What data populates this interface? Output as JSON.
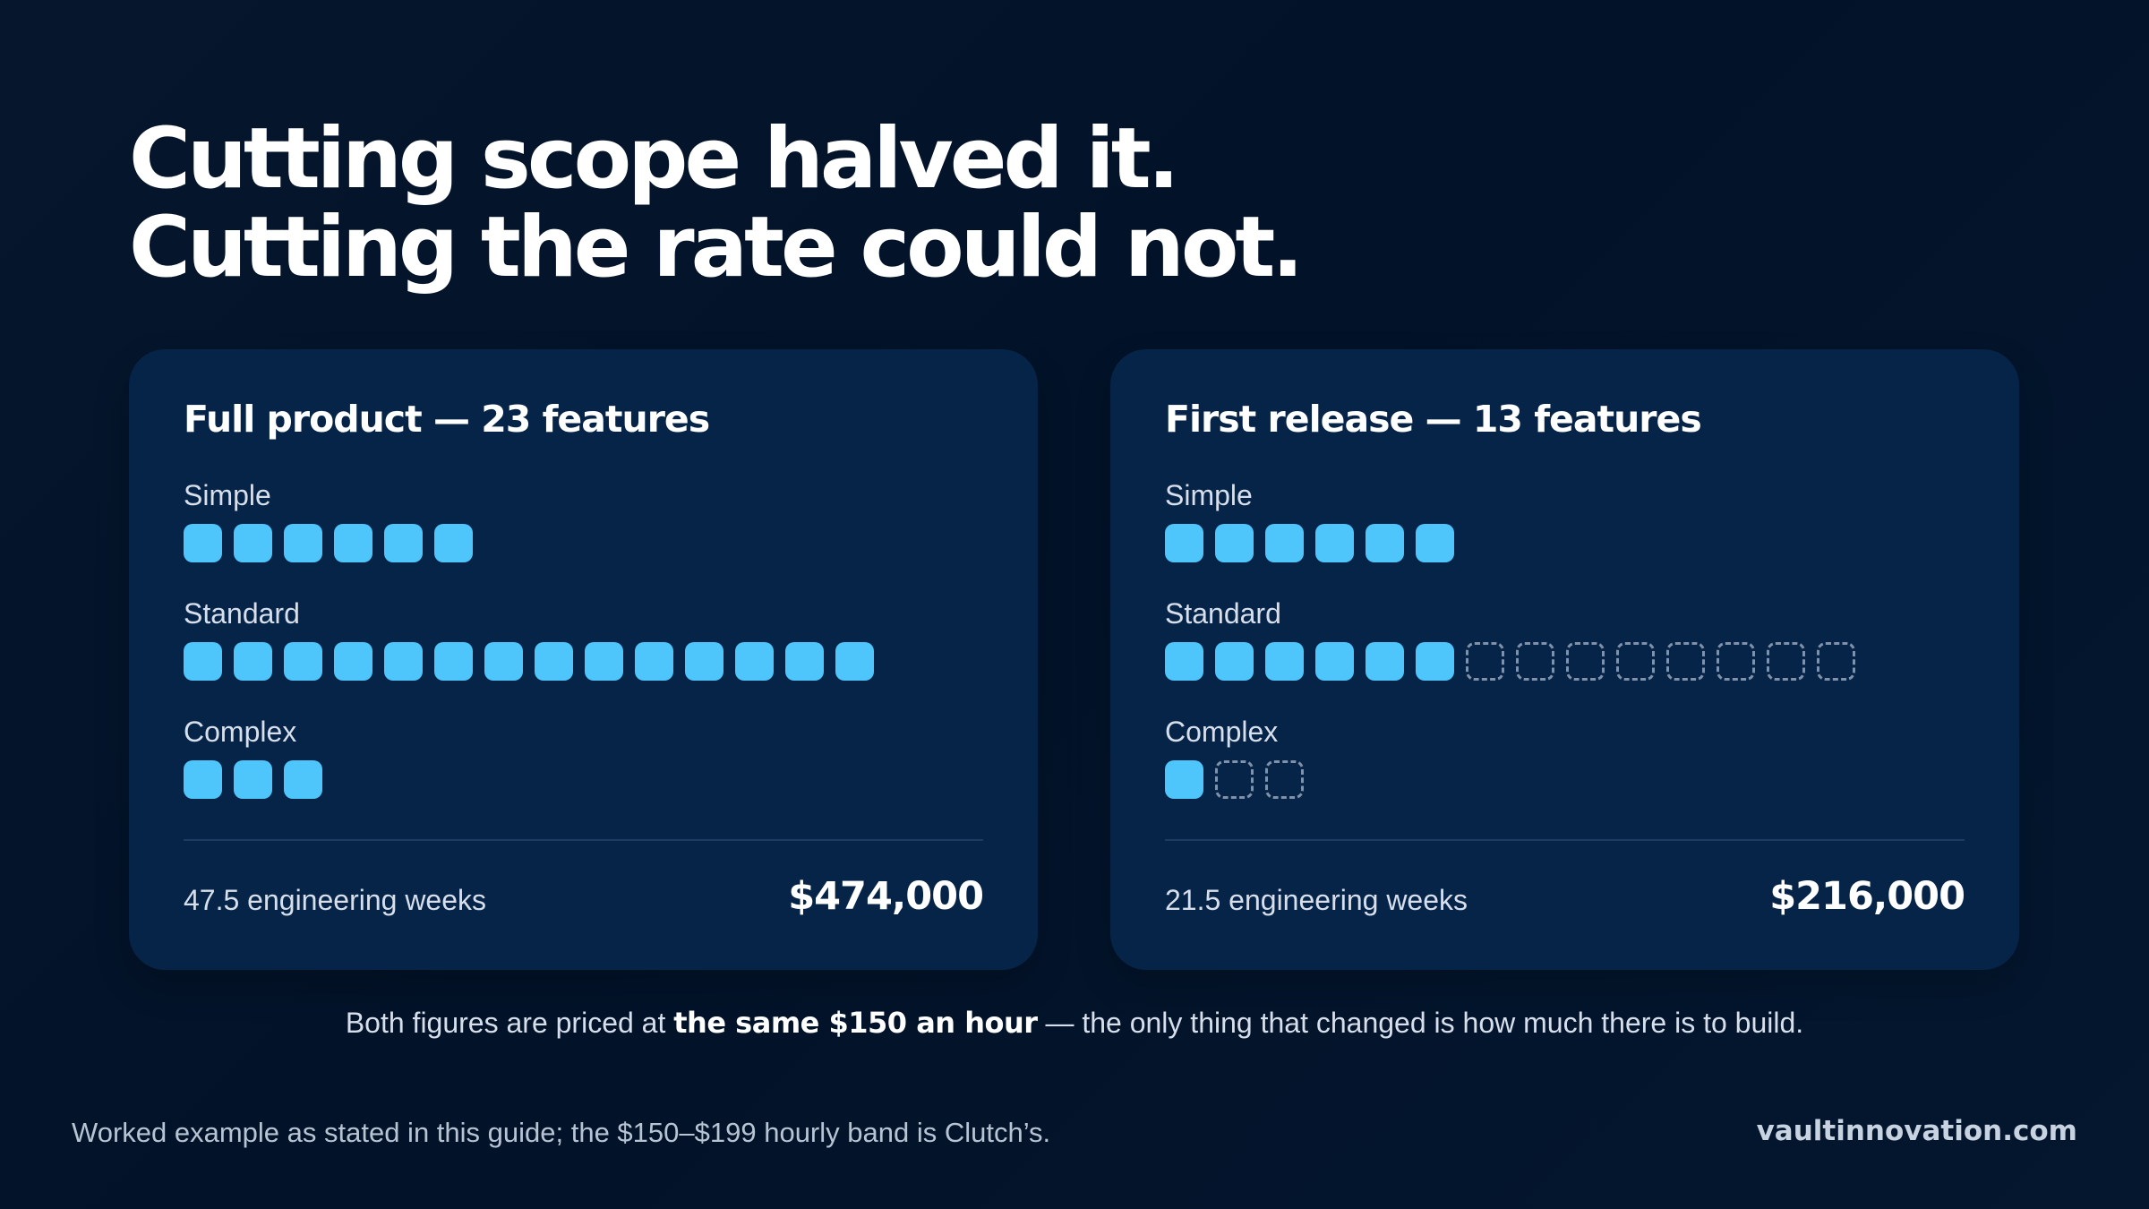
{
  "headline": {
    "line1": "Cutting scope halved it.",
    "line2": "Cutting the rate could not."
  },
  "colors": {
    "background": "#021228",
    "card": "#052448",
    "filled_square": "#4fc6fb",
    "empty_square_border": "#8092aa",
    "text_primary": "#ffffff",
    "text_secondary": "#d6dfeb"
  },
  "cards": [
    {
      "title": "Full product — 23 features",
      "groups": [
        {
          "label": "Simple",
          "filled": 6,
          "empty": 0
        },
        {
          "label": "Standard",
          "filled": 14,
          "empty": 0
        },
        {
          "label": "Complex",
          "filled": 3,
          "empty": 0
        }
      ],
      "weeks": "47.5 engineering weeks",
      "price": "$474,000"
    },
    {
      "title": "First release — 13 features",
      "groups": [
        {
          "label": "Simple",
          "filled": 6,
          "empty": 0
        },
        {
          "label": "Standard",
          "filled": 6,
          "empty": 8
        },
        {
          "label": "Complex",
          "filled": 1,
          "empty": 2
        }
      ],
      "weeks": "21.5 engineering weeks",
      "price": "$216,000"
    }
  ],
  "note": {
    "before": "Both figures are priced at ",
    "strong": "the same $150 an hour",
    "after": " — the only thing that changed is how much there is to build."
  },
  "source": "Worked example as stated in this guide; the $150–$199 hourly band is Clutch’s.",
  "brand": "vaultinnovation.com"
}
